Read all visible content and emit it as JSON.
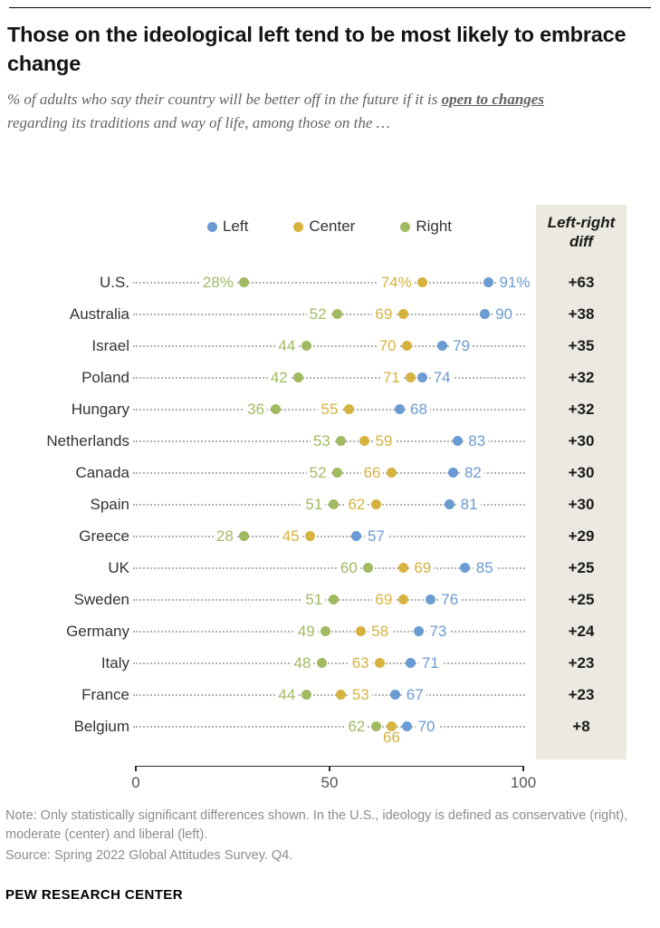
{
  "header": {
    "title": "Those on the ideological left tend to be most likely to embrace change",
    "subtitle_pre": "% of adults who say their country will be better off in the future if it is ",
    "subtitle_emph": "open to changes",
    "subtitle_post": " regarding its traditions and way of life, among those on the …"
  },
  "diff_column": {
    "header": "Left-right diff"
  },
  "chart_data": {
    "type": "scatter",
    "legend_position": "top",
    "xlim": [
      0,
      100
    ],
    "x_ticks": [
      0,
      50,
      100
    ],
    "first_row_value_suffix": "%",
    "categories": [
      "U.S.",
      "Australia",
      "Israel",
      "Poland",
      "Hungary",
      "Netherlands",
      "Canada",
      "Spain",
      "Greece",
      "UK",
      "Sweden",
      "Germany",
      "Italy",
      "France",
      "Belgium"
    ],
    "series": [
      {
        "name": "Left",
        "color": "#6A9BD3",
        "values": [
          91,
          90,
          79,
          74,
          68,
          83,
          82,
          81,
          57,
          85,
          76,
          73,
          71,
          67,
          70
        ]
      },
      {
        "name": "Center",
        "color": "#D6B23F",
        "values": [
          74,
          69,
          70,
          71,
          55,
          59,
          66,
          62,
          45,
          69,
          69,
          58,
          63,
          53,
          66
        ]
      },
      {
        "name": "Right",
        "color": "#A0BA62",
        "values": [
          28,
          52,
          44,
          42,
          36,
          53,
          52,
          51,
          28,
          60,
          51,
          49,
          48,
          44,
          62
        ]
      }
    ],
    "left_right_diff": [
      "+63",
      "+38",
      "+35",
      "+32",
      "+32",
      "+30",
      "+30",
      "+30",
      "+29",
      "+25",
      "+25",
      "+24",
      "+23",
      "+23",
      "+8"
    ]
  },
  "notes": {
    "note": "Note: Only statistically significant differences shown. In the U.S., ideology is defined as conservative (right), moderate (center) and liberal (left).",
    "source": "Source: Spring 2022 Global Attitudes Survey. Q4."
  },
  "footer": {
    "brand": "PEW RESEARCH CENTER"
  }
}
